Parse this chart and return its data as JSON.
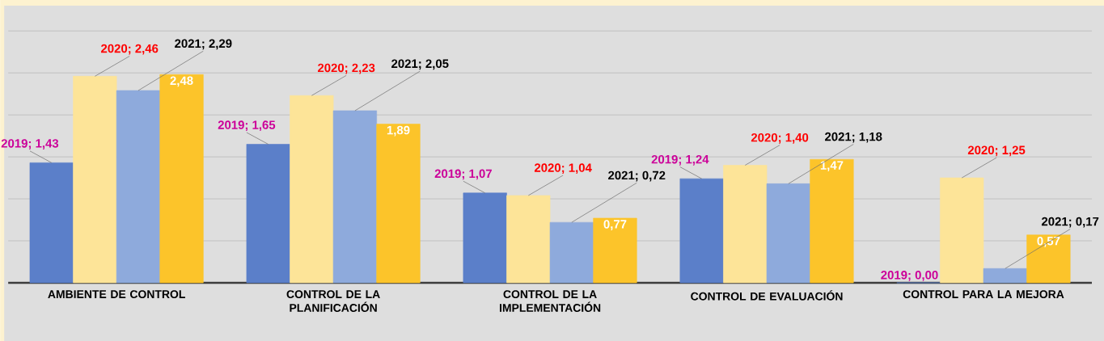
{
  "chart_data": {
    "type": "bar",
    "categories": [
      "AMBIENTE DE CONTROL",
      "CONTROL DE LA PLANIFICACIÓN",
      "CONTROL DE LA IMPLEMENTACIÓN",
      "CONTROL DE EVALUACIÓN",
      "CONTROL PARA LA MEJORA"
    ],
    "series": [
      {
        "color": "#5b7fc9",
        "values": [
          1.43,
          1.65,
          1.07,
          1.24,
          0.0
        ],
        "value_labels": [
          "2019; 1,43",
          "2019; 1,65",
          "2019; 1,07",
          "2019; 1,24",
          "2019; 0,00"
        ]
      },
      {
        "color": "#fde498",
        "values": [
          2.46,
          2.23,
          1.04,
          1.4,
          1.25
        ],
        "value_labels": [
          "2020; 2,46",
          "2020; 2,23",
          "2020; 1,04",
          "2020; 1,40",
          "2020; 1,25"
        ]
      },
      {
        "color": "#8eaadc",
        "values": [
          2.29,
          2.05,
          0.72,
          1.18,
          0.17
        ],
        "value_labels": [
          "2021; 2,29",
          "2021; 2,05",
          "2021; 0,72",
          "2021; 1,18",
          "2021; 0,17"
        ]
      },
      {
        "color": "#fcc42a",
        "values": [
          2.48,
          1.89,
          0.77,
          1.47,
          0.57
        ],
        "value_labels": [
          "2,48",
          "1,89",
          "0,77",
          "1,47",
          "0,57"
        ]
      }
    ],
    "grid": "y",
    "tick_labels": "x"
  }
}
